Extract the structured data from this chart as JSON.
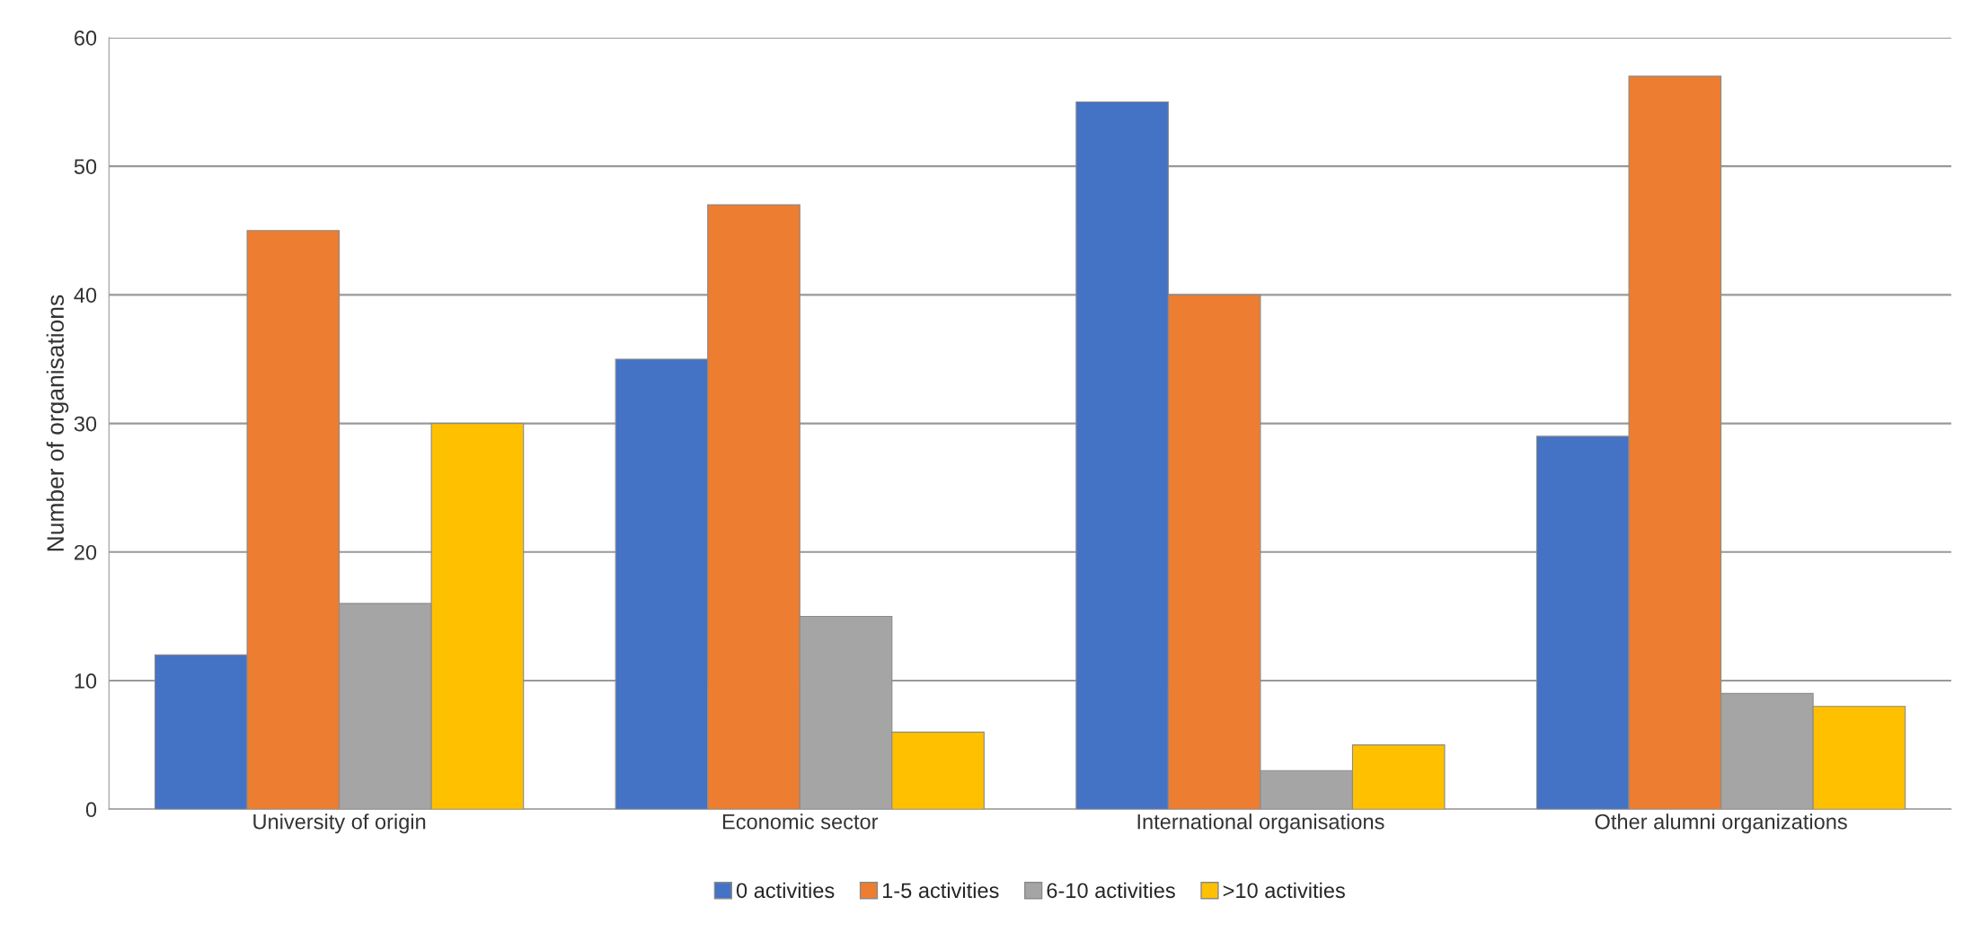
{
  "chart_data": {
    "type": "bar",
    "ylabel": "Number of organisations",
    "categories": [
      "University of origin",
      "Economic sector",
      "International organisations",
      "Other alumni organizations"
    ],
    "series": [
      {
        "name": "0 activities",
        "color": "#4472c4",
        "values": [
          12,
          35,
          55,
          29
        ]
      },
      {
        "name": "1-5 activities",
        "color": "#ed7d31",
        "values": [
          45,
          47,
          40,
          57
        ]
      },
      {
        "name": "6-10 activities",
        "color": "#a5a5a5",
        "values": [
          16,
          15,
          3,
          9
        ]
      },
      {
        "name": ">10 activities",
        "color": "#ffc000",
        "values": [
          30,
          6,
          5,
          8
        ]
      }
    ],
    "ylim": [
      0,
      60
    ],
    "yticks": [
      0,
      10,
      20,
      30,
      40,
      50,
      60
    ],
    "grid": "y",
    "legend": "bottom"
  }
}
